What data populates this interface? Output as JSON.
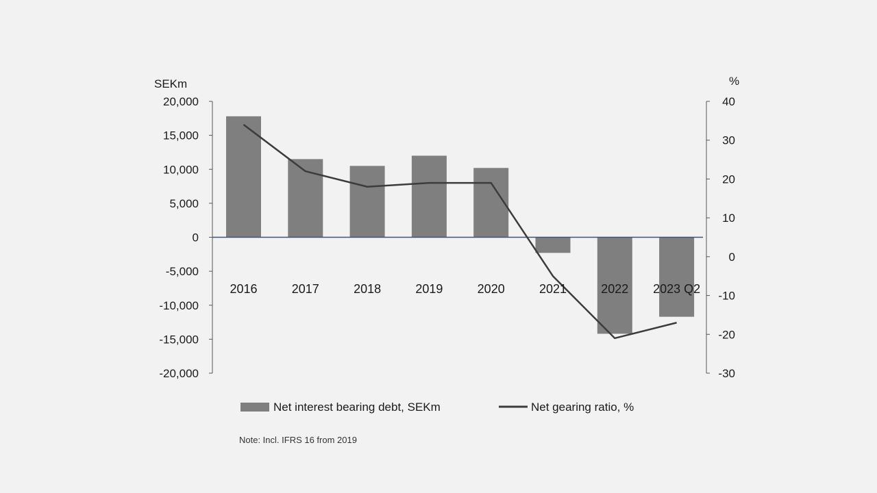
{
  "chart_data": {
    "type": "bar",
    "categories": [
      "2016",
      "2017",
      "2018",
      "2019",
      "2020",
      "2021",
      "2022",
      "2023 Q2"
    ],
    "series": [
      {
        "name": "Net interest bearing debt, SEKm",
        "type": "bar",
        "axis": "left",
        "color": "#7f7f7f",
        "values": [
          17800,
          11500,
          10500,
          12000,
          10200,
          -2300,
          -14200,
          -11700
        ]
      },
      {
        "name": "Net gearing ratio, %",
        "type": "line",
        "axis": "right",
        "color": "#3c3c3c",
        "values": [
          34,
          22,
          18,
          19,
          19,
          -5,
          -21,
          -17
        ]
      }
    ],
    "y_left": {
      "label": "SEKm",
      "ylim": [
        -20000,
        20000
      ],
      "ticks": [
        20000,
        15000,
        10000,
        5000,
        0,
        -5000,
        -10000,
        -15000,
        -20000
      ],
      "tick_labels": [
        "20,000",
        "15,000",
        "10,000",
        "5,000",
        "0",
        "-5,000",
        "-10,000",
        "-15,000",
        "-20,000"
      ]
    },
    "y_right": {
      "label": "%",
      "ylim": [
        -30,
        40
      ],
      "ticks": [
        40,
        30,
        20,
        10,
        0,
        -10,
        -20,
        -30
      ],
      "tick_labels": [
        "40",
        "30",
        "20",
        "10",
        "0",
        "-10",
        "-20",
        "-30"
      ]
    },
    "grid": false,
    "legend_position": "bottom",
    "note": "Note: Incl. IFRS 16 from 2019",
    "zero_line_color": "#44546a"
  }
}
